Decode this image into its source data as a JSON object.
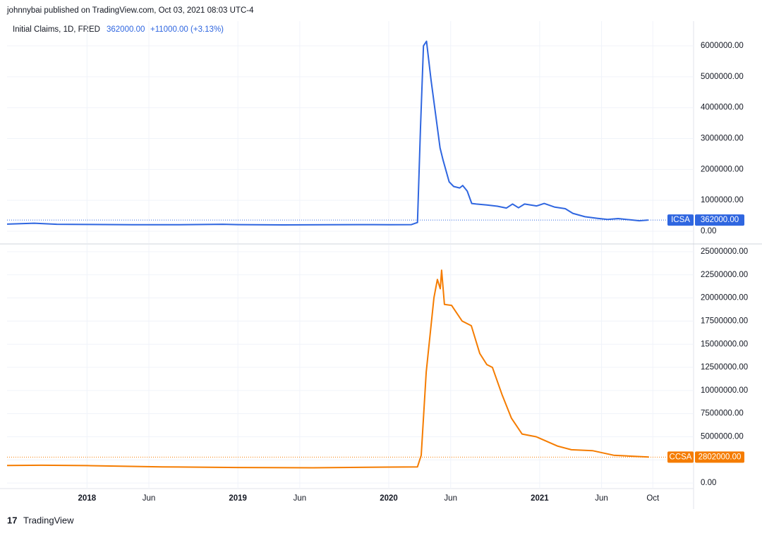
{
  "header": {
    "byline": "johnnybai published on TradingView.com, Oct 03, 2021 08:03 UTC-4",
    "brand": "TradingView"
  },
  "chart_data": [
    {
      "type": "line",
      "title": "Initial Claims, 1D, FRED",
      "legend_value": {
        "value": 362000,
        "label": "362000.00"
      },
      "legend_change": "+11000.00 (+3.13%)",
      "x": [
        2017.47,
        2017.65,
        2017.8,
        2018.0,
        2018.3,
        2018.6,
        2018.9,
        2019.0,
        2019.3,
        2019.6,
        2019.9,
        2020.0,
        2020.15,
        2020.19,
        2020.21,
        2020.23,
        2020.25,
        2020.28,
        2020.31,
        2020.34,
        2020.36,
        2020.4,
        2020.43,
        2020.47,
        2020.49,
        2020.52,
        2020.55,
        2020.58,
        2020.65,
        2020.72,
        2020.78,
        2020.82,
        2020.86,
        2020.9,
        2020.98,
        2021.03,
        2021.1,
        2021.17,
        2021.22,
        2021.3,
        2021.38,
        2021.45,
        2021.52,
        2021.6,
        2021.66,
        2021.72
      ],
      "series": [
        {
          "name": "ICSA",
          "color": "#2f66e0",
          "values": [
            230000,
            260000,
            225000,
            220000,
            210000,
            210000,
            225000,
            215000,
            205000,
            210000,
            215000,
            210000,
            215000,
            282000,
            3300000,
            6000000,
            6150000,
            4900000,
            3800000,
            2700000,
            2300000,
            1600000,
            1450000,
            1400000,
            1480000,
            1300000,
            900000,
            880000,
            850000,
            810000,
            750000,
            880000,
            760000,
            880000,
            820000,
            900000,
            780000,
            730000,
            580000,
            470000,
            420000,
            380000,
            410000,
            370000,
            340000,
            362000
          ],
          "last_value": {
            "value": 362000,
            "label": "362000.00"
          }
        }
      ],
      "xlim": [
        2017.47,
        2022.02
      ],
      "ylim": [
        -388000,
        6800000
      ],
      "yticks": [
        {
          "value": 0,
          "label": "0.00"
        },
        {
          "value": 1000000,
          "label": "1000000.00"
        },
        {
          "value": 2000000,
          "label": "2000000.00"
        },
        {
          "value": 3000000,
          "label": "3000000.00"
        },
        {
          "value": 4000000,
          "label": "4000000.00"
        },
        {
          "value": 5000000,
          "label": "5000000.00"
        },
        {
          "value": 6000000,
          "label": "6000000.00"
        }
      ],
      "grid": true
    },
    {
      "type": "line",
      "x": [
        2017.47,
        2017.7,
        2018.0,
        2018.5,
        2019.0,
        2019.5,
        2020.0,
        2020.19,
        2020.215,
        2020.248,
        2020.299,
        2020.322,
        2020.341,
        2020.35,
        2020.369,
        2020.416,
        2020.486,
        2020.547,
        2020.603,
        2020.65,
        2020.687,
        2020.752,
        2020.813,
        2020.883,
        2020.977,
        2021.117,
        2021.21,
        2021.35,
        2021.49,
        2021.724
      ],
      "series": [
        {
          "name": "CCSA",
          "color": "#f57c00",
          "values": [
            1900000,
            1920000,
            1880000,
            1750000,
            1680000,
            1650000,
            1720000,
            1750000,
            3000000,
            12000000,
            20000000,
            22000000,
            21000000,
            23000000,
            19300000,
            19200000,
            17500000,
            17000000,
            14000000,
            12800000,
            12500000,
            9500000,
            7000000,
            5300000,
            5000000,
            4000000,
            3600000,
            3500000,
            3000000,
            2802000
          ],
          "last_value": {
            "value": 2802000,
            "label": "2802000.00"
          }
        }
      ],
      "xlim": [
        2017.47,
        2022.02
      ],
      "xticks": [
        {
          "value": 2018,
          "label": "2018"
        },
        {
          "value": 2018.41,
          "label": "Jun"
        },
        {
          "value": 2019,
          "label": "2019"
        },
        {
          "value": 2019.41,
          "label": "Jun"
        },
        {
          "value": 2020,
          "label": "2020"
        },
        {
          "value": 2020.41,
          "label": "Jun"
        },
        {
          "value": 2021,
          "label": "2021"
        },
        {
          "value": 2021.41,
          "label": "Jun"
        },
        {
          "value": 2021.75,
          "label": "Oct"
        }
      ],
      "ylim": [
        -600000,
        25760000
      ],
      "yticks": [
        {
          "value": 0,
          "label": "0.00"
        },
        {
          "value": 2500000,
          "label": "2500000.00"
        },
        {
          "value": 5000000,
          "label": "5000000.00"
        },
        {
          "value": 7500000,
          "label": "7500000.00"
        },
        {
          "value": 10000000,
          "label": "10000000.00"
        },
        {
          "value": 12500000,
          "label": "12500000.00"
        },
        {
          "value": 15000000,
          "label": "15000000.00"
        },
        {
          "value": 17500000,
          "label": "17500000.00"
        },
        {
          "value": 20000000,
          "label": "20000000.00"
        },
        {
          "value": 22500000,
          "label": "22500000.00"
        },
        {
          "value": 25000000,
          "label": "25000000.00"
        }
      ],
      "grid": true
    }
  ]
}
